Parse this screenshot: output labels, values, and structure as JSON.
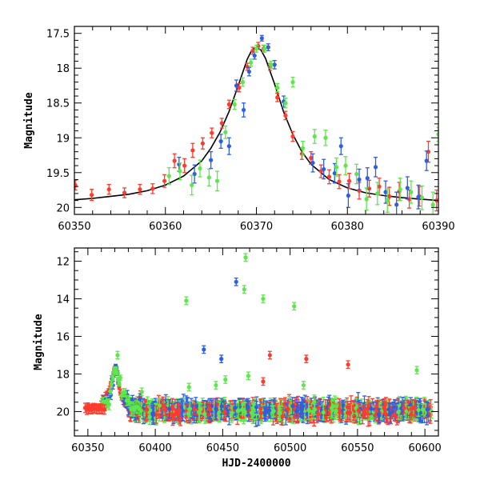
{
  "chart_data": [
    {
      "type": "scatter",
      "panel": "top",
      "title": "",
      "xlabel": "",
      "ylabel": "Magnitude",
      "xlim": [
        60350,
        60390
      ],
      "ylim": [
        20.1,
        17.4
      ],
      "y_inverted": true,
      "grid": false,
      "x_ticks": [
        60350,
        60360,
        60370,
        60380,
        60390
      ],
      "x_tick_labels": [
        "60350",
        "60360",
        "60370",
        "60380",
        "60390"
      ],
      "y_ticks": [
        17.5,
        18,
        18.5,
        19,
        19.5,
        20
      ],
      "y_tick_labels": [
        "17.5",
        "18",
        "18.5",
        "19",
        "19.5",
        "20"
      ],
      "model_curve": {
        "color": "#000000",
        "x": [
          60350,
          60352,
          60354,
          60356,
          60358,
          60360,
          60362,
          60364,
          60365,
          60366,
          60367,
          60368,
          60369,
          60369.5,
          60370,
          60370.5,
          60371,
          60372,
          60373,
          60374,
          60375,
          60376,
          60378,
          60380,
          60382,
          60384,
          60386,
          60388,
          60390
        ],
        "y": [
          19.89,
          19.87,
          19.84,
          19.81,
          19.76,
          19.68,
          19.55,
          19.33,
          19.15,
          18.92,
          18.62,
          18.25,
          17.87,
          17.74,
          17.7,
          17.74,
          17.86,
          18.23,
          18.63,
          18.95,
          19.2,
          19.38,
          19.6,
          19.72,
          19.79,
          19.83,
          19.86,
          19.88,
          19.9
        ]
      },
      "series": [
        {
          "color": "#ff3b2f",
          "x": [
            60350.1,
            60351.9,
            60353.8,
            60355.5,
            60357.2,
            60358.6,
            60359.9,
            60361.0,
            60362.1,
            60363.0,
            60364.1,
            60365.1,
            60366.2,
            60367.0,
            60368.1,
            60369.0,
            60369.6,
            60370.2,
            60370.8,
            60371.5,
            60372.3,
            60373.2,
            60374.0,
            60375.0,
            60376.0,
            60377.1,
            60378.0,
            60379.1,
            60380.2,
            60381.3,
            60382.4,
            60383.5,
            60384.6,
            60385.7,
            60386.8,
            60387.9,
            60388.9,
            60389.8
          ],
          "y": [
            19.68,
            19.82,
            19.74,
            19.79,
            19.74,
            19.73,
            19.62,
            19.33,
            19.4,
            19.18,
            19.08,
            18.93,
            18.79,
            18.52,
            18.28,
            17.98,
            17.75,
            17.68,
            17.72,
            17.98,
            18.42,
            18.68,
            18.98,
            19.23,
            19.29,
            19.48,
            19.56,
            19.63,
            19.62,
            19.76,
            19.73,
            19.7,
            19.84,
            19.77,
            19.88,
            19.84,
            19.2,
            19.9
          ],
          "err": [
            0.07,
            0.08,
            0.07,
            0.07,
            0.07,
            0.07,
            0.09,
            0.1,
            0.1,
            0.1,
            0.08,
            0.07,
            0.07,
            0.06,
            0.06,
            0.05,
            0.05,
            0.05,
            0.05,
            0.05,
            0.06,
            0.06,
            0.07,
            0.08,
            0.09,
            0.09,
            0.1,
            0.1,
            0.11,
            0.12,
            0.12,
            0.12,
            0.13,
            0.13,
            0.13,
            0.14,
            0.15,
            0.15
          ]
        },
        {
          "color": "#2f5fe0",
          "x": [
            60361.5,
            60363.2,
            60365.0,
            60366.1,
            60367.0,
            60367.8,
            60368.6,
            60369.2,
            60369.8,
            60370.6,
            60371.3,
            60372.0,
            60373.0,
            60376.2,
            60377.4,
            60378.6,
            60379.3,
            60380.1,
            60381.3,
            60382.2,
            60383.1,
            60384.2,
            60385.4,
            60386.6,
            60387.8,
            60388.7
          ],
          "y": [
            19.38,
            19.52,
            19.32,
            19.05,
            19.12,
            18.25,
            18.6,
            18.05,
            17.82,
            17.57,
            17.7,
            17.95,
            18.48,
            19.36,
            19.45,
            19.51,
            19.12,
            19.83,
            19.6,
            19.58,
            19.42,
            19.78,
            19.96,
            19.72,
            19.85,
            19.33
          ],
          "err": [
            0.1,
            0.13,
            0.12,
            0.1,
            0.12,
            0.08,
            0.1,
            0.06,
            0.05,
            0.04,
            0.05,
            0.06,
            0.08,
            0.13,
            0.14,
            0.14,
            0.12,
            0.17,
            0.15,
            0.15,
            0.14,
            0.16,
            0.18,
            0.16,
            0.17,
            0.14
          ]
        },
        {
          "color": "#5ce84a",
          "x": [
            60360.4,
            60361.6,
            60362.9,
            60363.8,
            60364.8,
            60365.7,
            60366.6,
            60367.6,
            60368.5,
            60369.4,
            60370.0,
            60370.9,
            60371.6,
            60372.3,
            60373.2,
            60374.0,
            60375.1,
            60376.4,
            60377.6,
            60378.8,
            60379.8,
            60381.0,
            60382.1,
            60383.3,
            60384.4,
            60385.8,
            60387.0,
            60388.2,
            60389.4,
            60390.0
          ],
          "y": [
            19.55,
            19.48,
            19.68,
            19.44,
            19.57,
            19.62,
            18.92,
            18.52,
            18.2,
            17.92,
            17.72,
            17.72,
            17.95,
            18.28,
            18.5,
            18.2,
            19.15,
            18.98,
            19.0,
            19.42,
            19.4,
            19.52,
            19.88,
            19.8,
            19.9,
            19.74,
            19.78,
            19.86,
            19.96,
            18.95
          ],
          "err": [
            0.12,
            0.12,
            0.14,
            0.12,
            0.12,
            0.14,
            0.09,
            0.07,
            0.06,
            0.05,
            0.05,
            0.05,
            0.05,
            0.06,
            0.07,
            0.07,
            0.1,
            0.1,
            0.11,
            0.13,
            0.13,
            0.14,
            0.16,
            0.16,
            0.17,
            0.16,
            0.16,
            0.17,
            0.18,
            0.1
          ]
        }
      ]
    },
    {
      "type": "scatter",
      "panel": "bottom",
      "title": "",
      "xlabel": "HJD-2400000",
      "ylabel": "Magnitude",
      "xlim": [
        60340,
        60610
      ],
      "ylim": [
        21.3,
        11.3
      ],
      "y_inverted": true,
      "grid": false,
      "x_ticks": [
        60350,
        60400,
        60450,
        60500,
        60550,
        60600
      ],
      "x_tick_labels": [
        "60350",
        "60400",
        "60450",
        "60500",
        "60550",
        "60600"
      ],
      "y_ticks": [
        12,
        14,
        16,
        18,
        20
      ],
      "y_tick_labels": [
        "12",
        "14",
        "16",
        "18",
        "20"
      ],
      "dense_band": {
        "x_start": 60380,
        "x_end": 60605,
        "baseline": 19.95,
        "scatter_mag": 0.9
      },
      "outliers": [
        {
          "color": "#5ce84a",
          "x": 60423,
          "y": 14.1
        },
        {
          "color": "#2f5fe0",
          "x": 60460,
          "y": 13.1
        },
        {
          "color": "#5ce84a",
          "x": 60467,
          "y": 11.8
        },
        {
          "color": "#5ce84a",
          "x": 60466,
          "y": 13.5
        },
        {
          "color": "#5ce84a",
          "x": 60480,
          "y": 14.0
        },
        {
          "color": "#5ce84a",
          "x": 60503,
          "y": 14.4
        },
        {
          "color": "#2f5fe0",
          "x": 60436,
          "y": 16.7
        },
        {
          "color": "#2f5fe0",
          "x": 60449,
          "y": 17.2
        },
        {
          "color": "#ff3b2f",
          "x": 60485,
          "y": 17.0
        },
        {
          "color": "#ff3b2f",
          "x": 60512,
          "y": 17.2
        },
        {
          "color": "#ff3b2f",
          "x": 60543,
          "y": 17.5
        },
        {
          "color": "#5ce84a",
          "x": 60594,
          "y": 17.8
        },
        {
          "color": "#5ce84a",
          "x": 60372,
          "y": 17.0
        },
        {
          "color": "#5ce84a",
          "x": 60425,
          "y": 18.7
        },
        {
          "color": "#5ce84a",
          "x": 60452,
          "y": 18.3
        },
        {
          "color": "#5ce84a",
          "x": 60469,
          "y": 18.1
        },
        {
          "color": "#ff3b2f",
          "x": 60480,
          "y": 18.4
        },
        {
          "color": "#5ce84a",
          "x": 60510,
          "y": 18.6
        },
        {
          "color": "#5ce84a",
          "x": 60445,
          "y": 18.6
        }
      ]
    }
  ]
}
